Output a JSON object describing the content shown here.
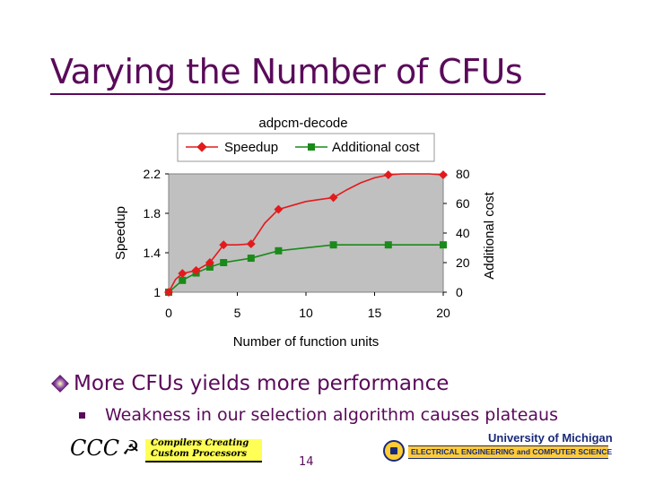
{
  "slide": {
    "title": "Varying the Number of CFUs",
    "bullets": [
      "More CFUs yields more performance",
      "Weakness in our selection algorithm causes plateaus"
    ],
    "page_number": "14",
    "logo_left": {
      "word": "CCC",
      "line1": "Compilers Creating",
      "line2": "Custom Processors"
    },
    "logo_right": {
      "university": "University of Michigan",
      "department": "ELECTRICAL ENGINEERING and COMPUTER SCIENCE"
    }
  },
  "colors": {
    "title": "#5a0a5a",
    "speedup": "#e31a1c",
    "cost": "#1a8a1a",
    "plot_bg": "#c0c0c0"
  },
  "chart_data": {
    "type": "line",
    "title": "adpcm-decode",
    "xlabel": "Number of function units",
    "ylabel": "Speedup",
    "y2label": "Additional cost",
    "xlim": [
      0,
      20
    ],
    "ylim": [
      1,
      2.2
    ],
    "y2lim": [
      0,
      80
    ],
    "xticks": [
      0,
      5,
      10,
      15,
      20
    ],
    "yticks": [
      1,
      1.4,
      1.8,
      2.2
    ],
    "y2ticks": [
      0,
      20,
      40,
      60,
      80
    ],
    "grid": false,
    "legend_position": "top",
    "series": [
      {
        "name": "Speedup",
        "axis": "left",
        "marker": "diamond",
        "x": [
          0,
          1,
          2,
          3,
          4,
          6,
          8,
          12,
          16,
          20
        ],
        "y": [
          1.0,
          1.19,
          1.22,
          1.3,
          1.48,
          1.49,
          1.84,
          1.96,
          2.19,
          2.19
        ],
        "curve_x": [
          0,
          0.5,
          1,
          2,
          3,
          4,
          5,
          6,
          7,
          8,
          9,
          10,
          11,
          12,
          13,
          14,
          15,
          16,
          17,
          18,
          19,
          20
        ],
        "curve_y": [
          1.0,
          1.13,
          1.19,
          1.22,
          1.3,
          1.48,
          1.48,
          1.49,
          1.7,
          1.84,
          1.88,
          1.92,
          1.94,
          1.96,
          2.04,
          2.11,
          2.16,
          2.19,
          2.2,
          2.2,
          2.2,
          2.19
        ]
      },
      {
        "name": "Additional cost",
        "axis": "right",
        "marker": "square",
        "x": [
          0,
          1,
          2,
          3,
          4,
          6,
          8,
          12,
          16,
          20
        ],
        "y": [
          0,
          8,
          13,
          17,
          20,
          23,
          28,
          32,
          32,
          32
        ]
      }
    ]
  }
}
